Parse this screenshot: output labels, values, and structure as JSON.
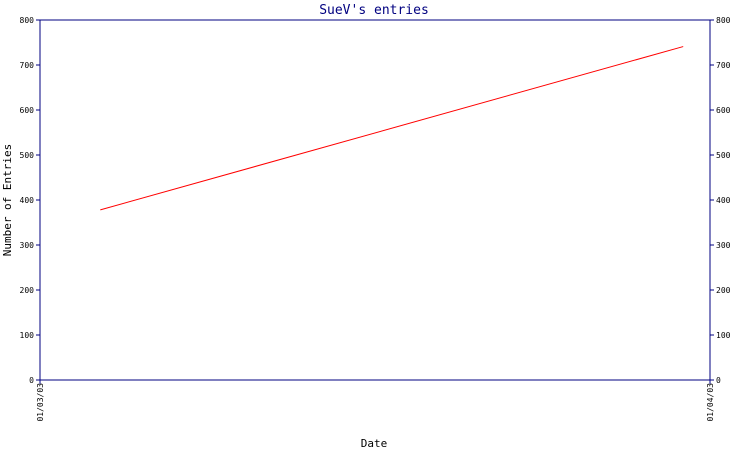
{
  "chart_data": {
    "type": "line",
    "title": "SueV's entries",
    "xlabel": "Date",
    "ylabel": "Number of Entries",
    "ylim": [
      0,
      800
    ],
    "yticks": [
      0,
      100,
      200,
      300,
      400,
      500,
      600,
      700,
      800
    ],
    "xticks": [
      "01/03/03",
      "01/04/03"
    ],
    "grid": false,
    "series": [
      {
        "color": "#ff0000",
        "points": [
          {
            "x": "01/03/03 +0.09",
            "y": 378
          },
          {
            "x": "01/04/03 -0.04",
            "y": 741
          }
        ]
      }
    ],
    "colors": {
      "frame": "#000080",
      "line": "#ff0000"
    }
  }
}
